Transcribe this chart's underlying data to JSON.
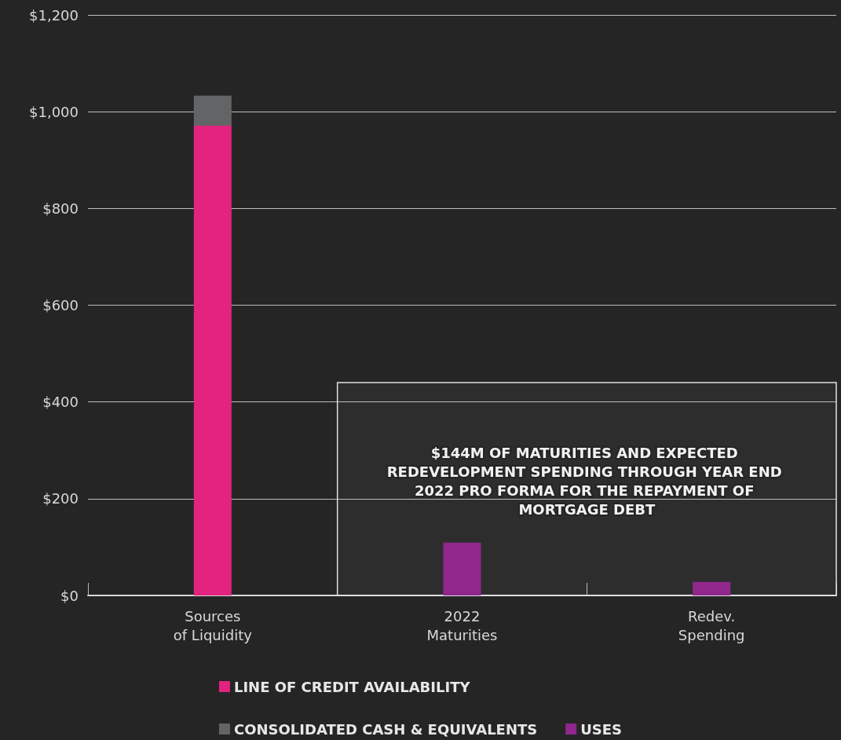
{
  "chart_data": {
    "type": "bar",
    "stacked": true,
    "categories": [
      "Sources\nof Liquidity",
      "2022\nMaturities",
      "Redev.\nSpending"
    ],
    "series": [
      {
        "name": "LINE OF CREDIT AVAILABILITY",
        "color": "#e2237f",
        "values": [
          971,
          null,
          null
        ]
      },
      {
        "name": "CONSOLIDATED CASH & EQUIVALENTS",
        "color": "#626466",
        "values": [
          62,
          null,
          null
        ]
      },
      {
        "name": "USES",
        "color": "#91278d",
        "values": [
          null,
          109,
          28
        ]
      }
    ],
    "ylim": [
      0,
      1200
    ],
    "yticks": [
      {
        "value": 0,
        "label": "$0"
      },
      {
        "value": 200,
        "label": "$200"
      },
      {
        "value": 400,
        "label": "$400"
      },
      {
        "value": 600,
        "label": "$600"
      },
      {
        "value": 800,
        "label": "$800"
      },
      {
        "value": 1000,
        "label": "$1,000"
      },
      {
        "value": 1200,
        "label": "$1,200"
      }
    ],
    "bands": [
      {
        "axis": "y",
        "from": 0,
        "to": 440,
        "label": "$144M OF MATURITIES AND EXPECTED REDEVELOPMENT SPENDING THROUGH YEAR END 2022 PRO FORMA FOR THE REPAYMENT OF MORTGAGE DEBT"
      }
    ],
    "grid": "y",
    "legend": "bottom"
  }
}
